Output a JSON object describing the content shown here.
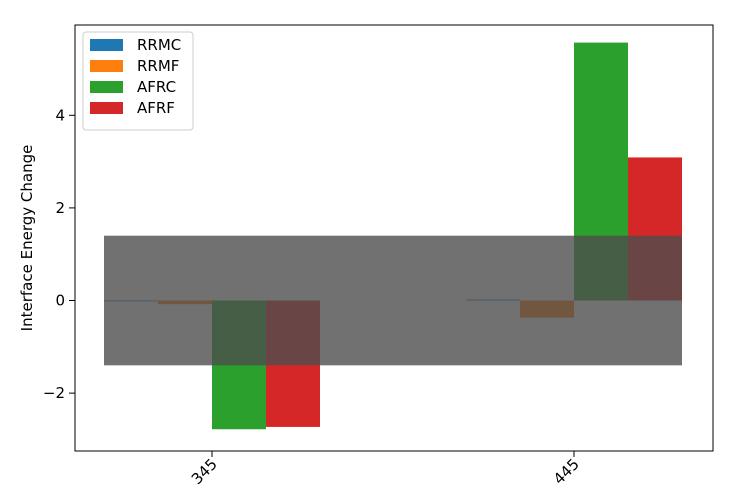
{
  "chart_data": {
    "type": "bar",
    "categories": [
      "345",
      "445"
    ],
    "series": [
      {
        "name": "RRMC",
        "color": "#1f77b4",
        "values": [
          0.0,
          0.02
        ]
      },
      {
        "name": "RRMF",
        "color": "#ff7f0e",
        "values": [
          -0.08,
          -0.37
        ]
      },
      {
        "name": "AFRC",
        "color": "#2ca02c",
        "values": [
          -2.78,
          5.57
        ]
      },
      {
        "name": "AFRF",
        "color": "#d62728",
        "values": [
          -2.73,
          3.09
        ]
      }
    ],
    "ylabel": "Interface Energy Change",
    "xlabel": "",
    "ylim": [
      -3.25,
      5.95
    ],
    "yticks": [
      -2,
      0,
      2,
      4
    ],
    "ytick_labels": [
      "−2",
      "0",
      "2",
      "4"
    ],
    "x_tick_rotation_deg": 45,
    "band": {
      "y0": -1.4,
      "y1": 1.4,
      "color": "#4d4d4d",
      "opacity": 0.8
    },
    "legend": {
      "placement": "top-left"
    },
    "grid": false
  }
}
